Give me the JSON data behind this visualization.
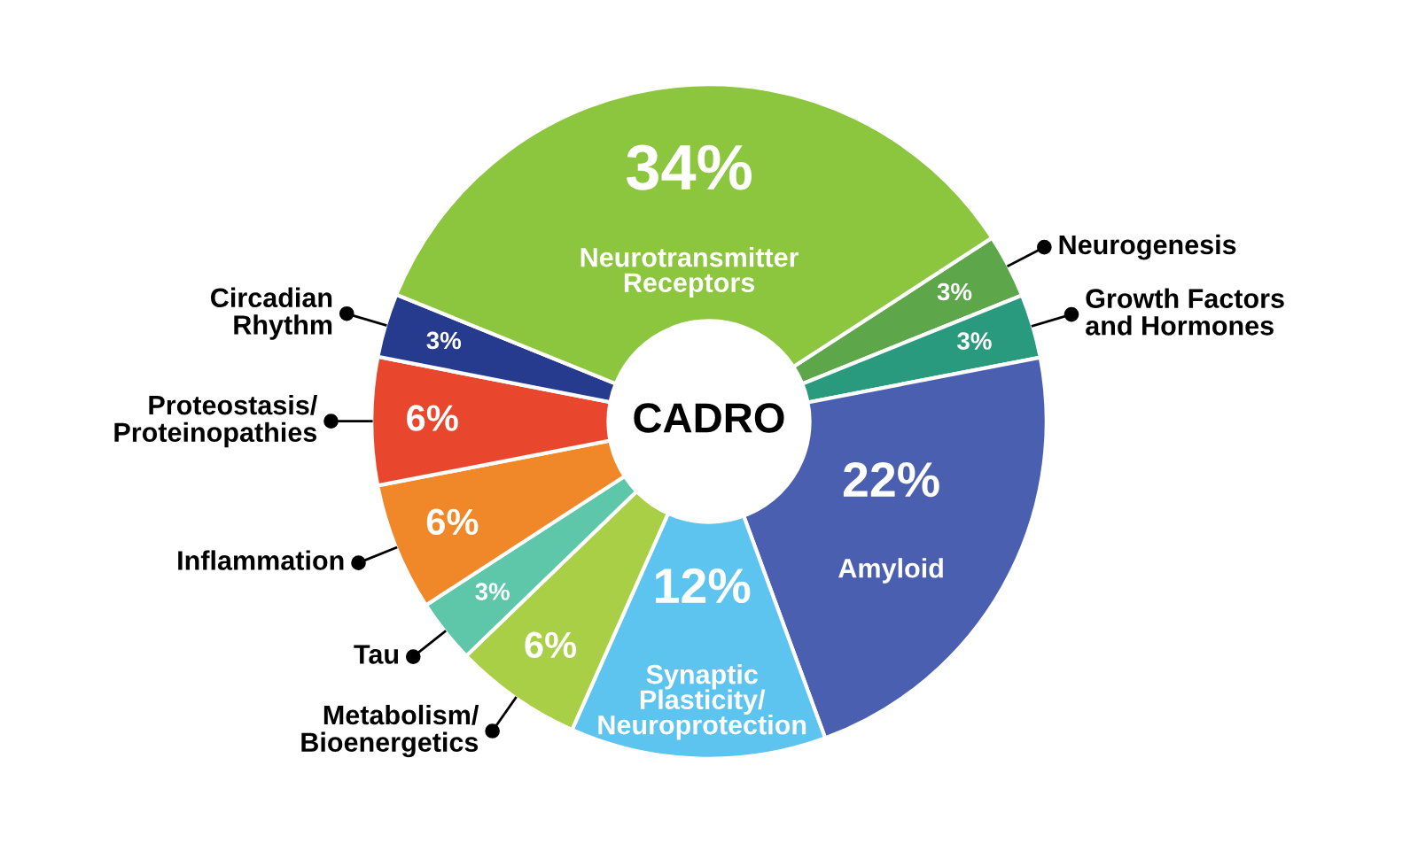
{
  "chart_data": {
    "type": "donut",
    "categories": [
      "Neurogenesis",
      "Growth Factors\nand Hormones",
      "Amyloid",
      "Synaptic\nPlasticity/\nNeuroprotection",
      "Metabolism/\nBioenergetics",
      "Tau",
      "Inflammation",
      "Proteostasis/\nProteinopathies",
      "Circadian\nRhythm",
      "Neurotransmitter\nReceptors"
    ],
    "values": [
      3,
      3,
      22,
      12,
      6,
      3,
      6,
      6,
      3,
      34
    ],
    "colors": [
      "#5ea64a",
      "#2a9a7e",
      "#4b5fb0",
      "#5cc4ee",
      "#a9cf46",
      "#5ec6a9",
      "#f0882a",
      "#e9472d",
      "#263a8e",
      "#8cc63f"
    ],
    "value_labels": [
      "3%",
      "3%",
      "22%",
      "12%",
      "6%",
      "3%",
      "6%",
      "6%",
      "3%",
      "34%"
    ],
    "annotations": [
      "CADRO"
    ],
    "legend": false
  }
}
